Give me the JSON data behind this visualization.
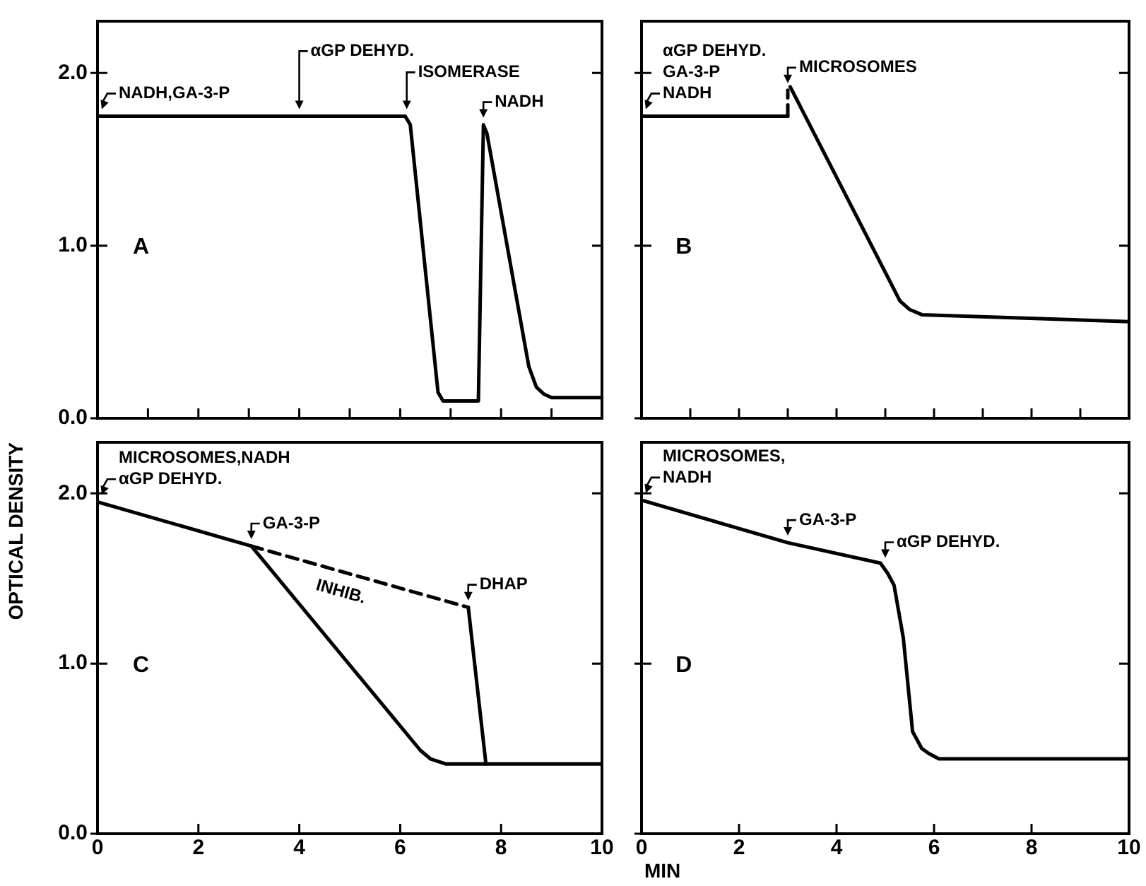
{
  "chart_data": [
    {
      "type": "line",
      "xlim": [
        0,
        10
      ],
      "ylim": [
        0,
        2.3
      ],
      "xticks": [
        0,
        1,
        2,
        3,
        4,
        5,
        6,
        7,
        8,
        9,
        10
      ],
      "yticks": [
        {
          "value": 0,
          "label": "0.0"
        },
        {
          "value": 1,
          "label": "1.0"
        },
        {
          "value": 2,
          "label": "2.0"
        }
      ],
      "tick_labels": "y",
      "grid": false,
      "legend": false,
      "marker": "none",
      "series": [
        {
          "color": "#000000",
          "line_style": "solid",
          "x": [
            0,
            6.1,
            6.2,
            6.75,
            6.85,
            7.55,
            7.65,
            7.72,
            8.55,
            8.7,
            8.85,
            9.0,
            10
          ],
          "values": [
            1.75,
            1.75,
            1.7,
            0.15,
            0.1,
            0.1,
            1.7,
            1.65,
            0.3,
            0.18,
            0.14,
            0.12,
            0.12
          ]
        }
      ],
      "annotations": [
        "A",
        {
          "text": "NADH,GA-3-P",
          "x": 0,
          "y": 1.75
        },
        {
          "text": "αGP DEHYD.",
          "x": 4,
          "y": 1.75
        },
        {
          "text": "ISOMERASE",
          "x": 6.13,
          "y": 1.75
        },
        {
          "text": "NADH",
          "x": 7.65,
          "y": 1.7
        }
      ]
    },
    {
      "type": "line",
      "xlim": [
        0,
        10
      ],
      "ylim": [
        0,
        2.3
      ],
      "xticks": [
        0,
        1,
        2,
        3,
        4,
        5,
        6,
        7,
        8,
        9,
        10
      ],
      "yticks": [
        0,
        1,
        2
      ],
      "tick_labels": false,
      "grid": false,
      "legend": false,
      "marker": "none",
      "series": [
        {
          "color": "#000000",
          "line_style": "solid",
          "x": [
            0,
            3
          ],
          "values": [
            1.75,
            1.75
          ]
        },
        {
          "color": "#000000",
          "line_style": "dashed",
          "x": [
            3,
            3
          ],
          "values": [
            1.75,
            1.9
          ]
        },
        {
          "color": "#000000",
          "line_style": "solid",
          "x": [
            3.05,
            5.3,
            5.5,
            5.75,
            10
          ],
          "values": [
            1.92,
            0.68,
            0.63,
            0.6,
            0.56
          ]
        }
      ],
      "annotations": [
        "B",
        {
          "text": "αGP DEHYD.\nGA-3-P\nNADH",
          "x": 0,
          "y": 1.75
        },
        {
          "text": "MICROSOMES",
          "x": 3,
          "y": 1.9
        }
      ]
    },
    {
      "type": "line",
      "xlim": [
        0,
        10
      ],
      "ylim": [
        0,
        2.3
      ],
      "xticks": [
        0,
        2,
        4,
        6,
        8,
        10
      ],
      "yticks": [
        {
          "value": 0,
          "label": "0.0"
        },
        {
          "value": 1,
          "label": "1.0"
        },
        {
          "value": 2,
          "label": "2.0"
        }
      ],
      "ylabel": "OPTICAL DENSITY",
      "grid": false,
      "legend": false,
      "marker": "none",
      "series": [
        {
          "color": "#000000",
          "line_style": "solid",
          "x": [
            0,
            3.05,
            6.4,
            6.6,
            6.9,
            10
          ],
          "values": [
            1.95,
            1.69,
            0.49,
            0.44,
            0.41,
            0.41
          ]
        },
        {
          "name": "INHIB.",
          "color": "#000000",
          "line_style": "dashed",
          "x": [
            3.05,
            7.35
          ],
          "values": [
            1.69,
            1.33
          ]
        },
        {
          "color": "#000000",
          "line_style": "solid",
          "x": [
            7.35,
            7.7
          ],
          "values": [
            1.33,
            0.41
          ]
        }
      ],
      "annotations": [
        "C",
        {
          "text": "MICROSOMES,NADH\nαGP DEHYD.",
          "x": 0,
          "y": 1.95
        },
        {
          "text": "GA-3-P",
          "x": 3.05,
          "y": 1.69
        },
        {
          "text": "DHAP",
          "x": 7.35,
          "y": 1.33
        }
      ]
    },
    {
      "type": "line",
      "xlim": [
        0,
        10
      ],
      "ylim": [
        0,
        2.3
      ],
      "xticks": [
        0,
        2,
        4,
        6,
        8,
        10
      ],
      "yticks": [
        0,
        1,
        2
      ],
      "tick_labels": "x",
      "xlabel": "MIN",
      "grid": false,
      "legend": false,
      "marker": "none",
      "series": [
        {
          "color": "#000000",
          "line_style": "solid",
          "x": [
            0,
            3,
            4.9,
            5.05,
            5.18,
            5.37,
            5.56,
            5.75,
            5.9,
            6.1,
            10
          ],
          "values": [
            1.96,
            1.71,
            1.59,
            1.53,
            1.46,
            1.15,
            0.6,
            0.5,
            0.47,
            0.44,
            0.44
          ]
        }
      ],
      "annotations": [
        "D",
        {
          "text": "MICROSOMES,\nNADH",
          "x": 0,
          "y": 1.96
        },
        {
          "text": "GA-3-P",
          "x": 3,
          "y": 1.71
        },
        {
          "text": "αGP DEHYD.",
          "x": 5,
          "y": 1.58
        }
      ]
    }
  ]
}
